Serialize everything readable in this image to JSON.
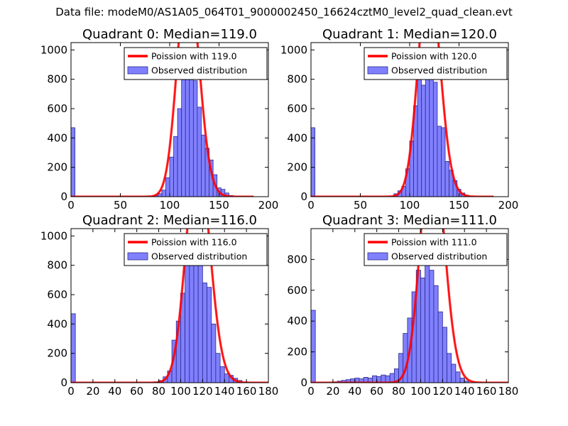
{
  "figure": {
    "suptitle": "Data file: modeM0/AS1A05_064T01_9000002450_16624cztM0_level2_quad_clean.evt"
  },
  "colors": {
    "histogram_fill": "#8080ff",
    "histogram_edge": "#2a2a8c",
    "poisson_line": "#ff0000",
    "frame": "#000000"
  },
  "chart_data": [
    {
      "type": "bar",
      "title": "Quadrant 0: Median=119.0",
      "xlim": [
        0,
        200
      ],
      "ylim": [
        0,
        1050
      ],
      "xticks": [
        "0",
        "50",
        "100",
        "150",
        "200"
      ],
      "xtick_values": [
        0,
        50,
        100,
        150,
        200
      ],
      "yticks": [
        "0",
        "200",
        "400",
        "600",
        "800",
        "1000"
      ],
      "ytick_values": [
        0,
        200,
        400,
        600,
        800,
        1000
      ],
      "legend": {
        "placement": "top-right",
        "line_label": "Poission with 119.0",
        "bar_label": "Observed distribution"
      },
      "bin_width": 4,
      "bins": [
        {
          "x": 0,
          "y": 470
        },
        {
          "x": 84,
          "y": 8
        },
        {
          "x": 88,
          "y": 20
        },
        {
          "x": 92,
          "y": 45
        },
        {
          "x": 96,
          "y": 130
        },
        {
          "x": 100,
          "y": 270
        },
        {
          "x": 104,
          "y": 410
        },
        {
          "x": 108,
          "y": 600
        },
        {
          "x": 112,
          "y": 860
        },
        {
          "x": 116,
          "y": 820
        },
        {
          "x": 120,
          "y": 970
        },
        {
          "x": 124,
          "y": 790
        },
        {
          "x": 128,
          "y": 610
        },
        {
          "x": 132,
          "y": 420
        },
        {
          "x": 136,
          "y": 330
        },
        {
          "x": 140,
          "y": 250
        },
        {
          "x": 144,
          "y": 150
        },
        {
          "x": 148,
          "y": 60
        },
        {
          "x": 152,
          "y": 50
        },
        {
          "x": 156,
          "y": 25
        },
        {
          "x": 160,
          "y": 8
        }
      ],
      "poisson": {
        "mean": 119.0,
        "x_range": [
          0,
          185
        ]
      }
    },
    {
      "type": "bar",
      "title": "Quadrant 1: Median=120.0",
      "xlim": [
        0,
        200
      ],
      "ylim": [
        0,
        1050
      ],
      "xticks": [
        "0",
        "50",
        "100",
        "150",
        "200"
      ],
      "xtick_values": [
        0,
        50,
        100,
        150,
        200
      ],
      "yticks": [
        "0",
        "200",
        "400",
        "600",
        "800",
        "1000"
      ],
      "ytick_values": [
        0,
        200,
        400,
        600,
        800,
        1000
      ],
      "legend": {
        "placement": "top-right",
        "line_label": "Poission with 120.0",
        "bar_label": "Observed distribution"
      },
      "bin_width": 4,
      "bins": [
        {
          "x": 0,
          "y": 470
        },
        {
          "x": 84,
          "y": 20
        },
        {
          "x": 88,
          "y": 40
        },
        {
          "x": 92,
          "y": 70
        },
        {
          "x": 96,
          "y": 190
        },
        {
          "x": 100,
          "y": 380
        },
        {
          "x": 104,
          "y": 620
        },
        {
          "x": 108,
          "y": 820
        },
        {
          "x": 112,
          "y": 760
        },
        {
          "x": 116,
          "y": 950
        },
        {
          "x": 120,
          "y": 900
        },
        {
          "x": 124,
          "y": 780
        },
        {
          "x": 128,
          "y": 480
        },
        {
          "x": 132,
          "y": 470
        },
        {
          "x": 136,
          "y": 240
        },
        {
          "x": 140,
          "y": 180
        },
        {
          "x": 144,
          "y": 110
        },
        {
          "x": 148,
          "y": 50
        },
        {
          "x": 152,
          "y": 25
        },
        {
          "x": 156,
          "y": 10
        }
      ],
      "poisson": {
        "mean": 120.0,
        "x_range": [
          0,
          185
        ]
      }
    },
    {
      "type": "bar",
      "title": "Quadrant 2: Median=116.0",
      "xlim": [
        0,
        180
      ],
      "ylim": [
        0,
        1050
      ],
      "xticks": [
        "0",
        "20",
        "40",
        "60",
        "80",
        "100",
        "120",
        "140",
        "160",
        "180"
      ],
      "xtick_values": [
        0,
        20,
        40,
        60,
        80,
        100,
        120,
        140,
        160,
        180
      ],
      "yticks": [
        "0",
        "200",
        "400",
        "600",
        "800",
        "1000"
      ],
      "ytick_values": [
        0,
        200,
        400,
        600,
        800,
        1000
      ],
      "legend": {
        "placement": "top-right",
        "line_label": "Poission with 116.0",
        "bar_label": "Observed distribution"
      },
      "bin_width": 4,
      "bins": [
        {
          "x": 0,
          "y": 470
        },
        {
          "x": 76,
          "y": 5
        },
        {
          "x": 80,
          "y": 15
        },
        {
          "x": 84,
          "y": 40
        },
        {
          "x": 88,
          "y": 80
        },
        {
          "x": 92,
          "y": 290
        },
        {
          "x": 96,
          "y": 420
        },
        {
          "x": 100,
          "y": 610
        },
        {
          "x": 104,
          "y": 800
        },
        {
          "x": 108,
          "y": 900
        },
        {
          "x": 112,
          "y": 920
        },
        {
          "x": 116,
          "y": 800
        },
        {
          "x": 120,
          "y": 680
        },
        {
          "x": 124,
          "y": 650
        },
        {
          "x": 128,
          "y": 400
        },
        {
          "x": 132,
          "y": 200
        },
        {
          "x": 136,
          "y": 110
        },
        {
          "x": 140,
          "y": 60
        },
        {
          "x": 144,
          "y": 50
        },
        {
          "x": 148,
          "y": 30
        },
        {
          "x": 152,
          "y": 15
        }
      ],
      "poisson": {
        "mean": 116.0,
        "x_range": [
          0,
          180
        ]
      }
    },
    {
      "type": "bar",
      "title": "Quadrant 3: Median=111.0",
      "xlim": [
        0,
        180
      ],
      "ylim": [
        0,
        1000
      ],
      "xticks": [
        "0",
        "20",
        "40",
        "60",
        "80",
        "100",
        "120",
        "140",
        "160",
        "180"
      ],
      "xtick_values": [
        0,
        20,
        40,
        60,
        80,
        100,
        120,
        140,
        160,
        180
      ],
      "yticks": [
        "0",
        "200",
        "400",
        "600",
        "800"
      ],
      "ytick_values": [
        0,
        200,
        400,
        600,
        800
      ],
      "legend": {
        "placement": "top-right",
        "line_label": "Poission with 111.0",
        "bar_label": "Observed distribution"
      },
      "bin_width": 4,
      "bins": [
        {
          "x": 0,
          "y": 470
        },
        {
          "x": 20,
          "y": 5
        },
        {
          "x": 24,
          "y": 10
        },
        {
          "x": 28,
          "y": 15
        },
        {
          "x": 32,
          "y": 20
        },
        {
          "x": 36,
          "y": 25
        },
        {
          "x": 40,
          "y": 30
        },
        {
          "x": 44,
          "y": 25
        },
        {
          "x": 48,
          "y": 35
        },
        {
          "x": 52,
          "y": 30
        },
        {
          "x": 56,
          "y": 45
        },
        {
          "x": 60,
          "y": 40
        },
        {
          "x": 64,
          "y": 50
        },
        {
          "x": 68,
          "y": 45
        },
        {
          "x": 72,
          "y": 60
        },
        {
          "x": 76,
          "y": 90
        },
        {
          "x": 80,
          "y": 190
        },
        {
          "x": 84,
          "y": 320
        },
        {
          "x": 88,
          "y": 420
        },
        {
          "x": 92,
          "y": 590
        },
        {
          "x": 96,
          "y": 730
        },
        {
          "x": 100,
          "y": 680
        },
        {
          "x": 104,
          "y": 920
        },
        {
          "x": 108,
          "y": 730
        },
        {
          "x": 112,
          "y": 630
        },
        {
          "x": 116,
          "y": 460
        },
        {
          "x": 120,
          "y": 360
        },
        {
          "x": 124,
          "y": 190
        },
        {
          "x": 128,
          "y": 120
        },
        {
          "x": 132,
          "y": 70
        },
        {
          "x": 136,
          "y": 30
        },
        {
          "x": 140,
          "y": 10
        }
      ],
      "poisson": {
        "mean": 111.0,
        "x_range": [
          0,
          180
        ]
      }
    }
  ]
}
